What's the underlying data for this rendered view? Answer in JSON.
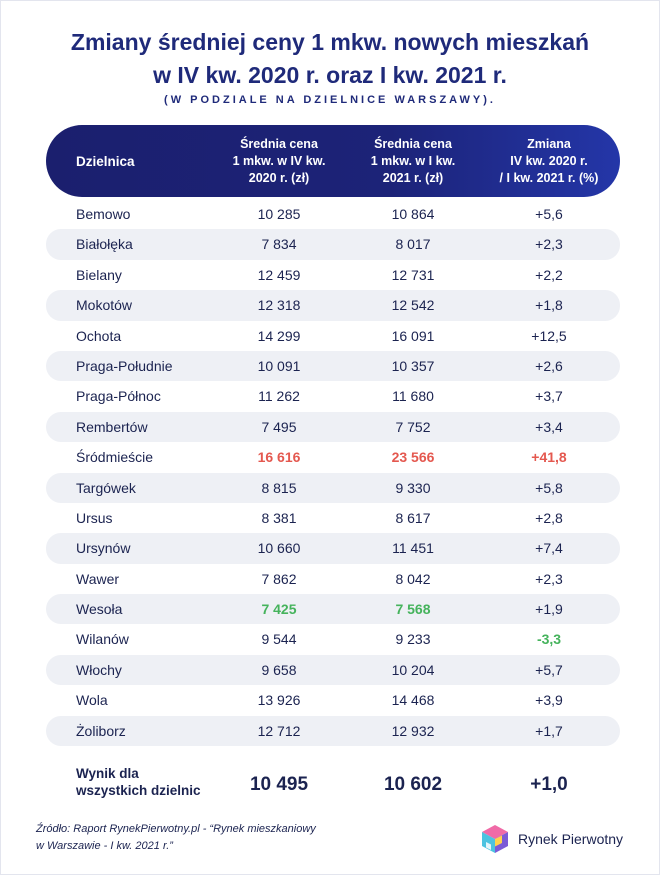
{
  "title_line1": "Zmiany średniej ceny 1 mkw. nowych mieszkań",
  "title_line2": "w IV kw. 2020 r. oraz I kw. 2021 r.",
  "subtitle": "(W PODZIALE NA DZIELNICE WARSZAWY).",
  "header": {
    "dzielnica": "Dzielnica",
    "col1": [
      "Średnia cena",
      "1 mkw. w IV kw.",
      "2020 r. (zł)"
    ],
    "col2": [
      "Średnia cena",
      "1 mkw. w I kw.",
      "2021 r. (zł)"
    ],
    "col3": [
      "Zmiana",
      "IV kw. 2020 r.",
      "/ I kw. 2021 r. (%)"
    ]
  },
  "rows": [
    {
      "name": "Bemowo",
      "v1": "10 285",
      "v2": "10 864",
      "change": "+5,6"
    },
    {
      "name": "Białołęka",
      "v1": "7 834",
      "v2": "8 017",
      "change": "+2,3"
    },
    {
      "name": "Bielany",
      "v1": "12 459",
      "v2": "12 731",
      "change": "+2,2"
    },
    {
      "name": "Mokotów",
      "v1": "12 318",
      "v2": "12 542",
      "change": "+1,8"
    },
    {
      "name": "Ochota",
      "v1": "14 299",
      "v2": "16 091",
      "change": "+12,5"
    },
    {
      "name": "Praga-Południe",
      "v1": "10 091",
      "v2": "10 357",
      "change": "+2,6"
    },
    {
      "name": "Praga-Północ",
      "v1": "11 262",
      "v2": "11 680",
      "change": "+3,7"
    },
    {
      "name": "Rembertów",
      "v1": "7 495",
      "v2": "7 752",
      "change": "+3,4"
    },
    {
      "name": "Śródmieście",
      "v1": "16 616",
      "v2": "23 566",
      "change": "+41,8"
    },
    {
      "name": "Targówek",
      "v1": "8 815",
      "v2": "9 330",
      "change": "+5,8"
    },
    {
      "name": "Ursus",
      "v1": "8 381",
      "v2": "8 617",
      "change": "+2,8"
    },
    {
      "name": "Ursynów",
      "v1": "10 660",
      "v2": "11 451",
      "change": "+7,4"
    },
    {
      "name": "Wawer",
      "v1": "7 862",
      "v2": "8 042",
      "change": "+2,3"
    },
    {
      "name": "Wesoła",
      "v1": "7 425",
      "v2": "7 568",
      "change": "+1,9"
    },
    {
      "name": "Wilanów",
      "v1": "9 544",
      "v2": "9 233",
      "change": "-3,3"
    },
    {
      "name": "Włochy",
      "v1": "9 658",
      "v2": "10 204",
      "change": "+5,7"
    },
    {
      "name": "Wola",
      "v1": "13 926",
      "v2": "14 468",
      "change": "+3,9"
    },
    {
      "name": "Żoliborz",
      "v1": "12 712",
      "v2": "12 932",
      "change": "+1,7"
    }
  ],
  "highlights": {
    "red_color": "#e4584f",
    "green_color": "#45b35c",
    "red_cells": [
      [
        8,
        "v1"
      ],
      [
        8,
        "v2"
      ],
      [
        8,
        "change"
      ]
    ],
    "green_cells": [
      [
        13,
        "v1"
      ],
      [
        13,
        "v2"
      ],
      [
        14,
        "change"
      ]
    ]
  },
  "total": {
    "label_line1": "Wynik dla",
    "label_line2": "wszystkich dzielnic",
    "v1": "10 495",
    "v2": "10 602",
    "change": "+1,0"
  },
  "source": {
    "line1": "Źródło: Raport RynekPierwotny.pl - “Rynek mieszkaniowy",
    "line2": "w Warszawie - I kw. 2021 r.”"
  },
  "logo": {
    "brand": "Rynek Pierwotny",
    "icon": "cube-logo-icon"
  },
  "colors": {
    "header_bg": "#1b1f6e",
    "title": "#1f2a7a",
    "row_shade": "#eef0f5"
  }
}
